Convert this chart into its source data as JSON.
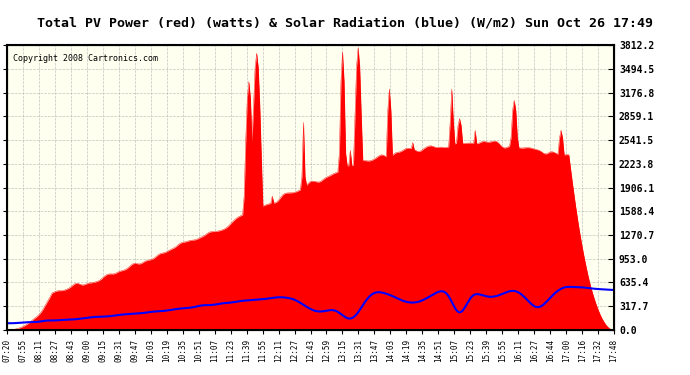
{
  "title": "Total PV Power (red) (watts) & Solar Radiation (blue) (W/m2) Sun Oct 26 17:49",
  "copyright": "Copyright 2008 Cartronics.com",
  "ymax": 3812.2,
  "yticks": [
    0.0,
    317.7,
    635.4,
    953.0,
    1270.7,
    1588.4,
    1906.1,
    2223.8,
    2541.5,
    2859.1,
    3176.8,
    3494.5,
    3812.2
  ],
  "bg_color": "#FFFFF0",
  "grid_color": "#AAAAAA",
  "title_bg": "#D0D0D0",
  "xtick_labels": [
    "07:20",
    "07:55",
    "08:11",
    "08:27",
    "08:43",
    "09:00",
    "09:15",
    "09:31",
    "09:47",
    "10:03",
    "10:19",
    "10:35",
    "10:51",
    "11:07",
    "11:23",
    "11:39",
    "11:55",
    "12:11",
    "12:27",
    "12:43",
    "12:59",
    "13:15",
    "13:31",
    "13:47",
    "14:03",
    "14:19",
    "14:35",
    "14:51",
    "15:07",
    "15:23",
    "15:39",
    "15:55",
    "16:11",
    "16:27",
    "16:44",
    "17:00",
    "17:16",
    "17:32",
    "17:48"
  ],
  "red_color": "#FF0000",
  "blue_color": "#0000FF",
  "fill_red": "#FF0000",
  "fill_alpha": 1.0
}
